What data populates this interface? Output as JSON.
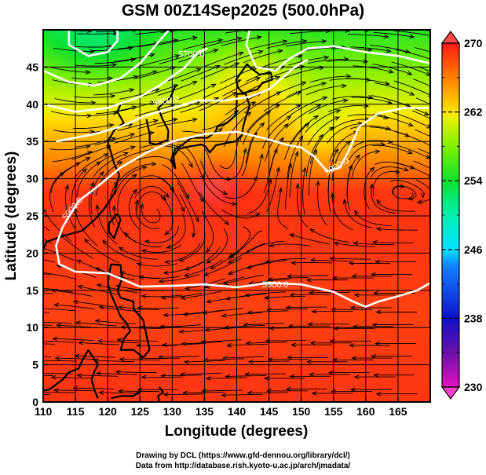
{
  "title": "GSM 00Z14Sep2025 (500.0hPa)",
  "credits": {
    "line1": "Drawing by DCL (https://www.gfd-dennou.org/library/dcl/)",
    "line2": "Data from http://database.rish.kyoto-u.ac.jp/arch/jmadata/"
  },
  "chart_data": {
    "type": "heatmap",
    "title": "GSM 00Z14Sep2025 (500.0hPa)",
    "xlabel": "Longitude (degrees)",
    "ylabel": "Latitude  (degrees)",
    "xlim": [
      110,
      170
    ],
    "ylim": [
      0,
      50
    ],
    "x_ticks": [
      "110",
      "115",
      "120",
      "125",
      "130",
      "135",
      "140",
      "145",
      "150",
      "155",
      "160",
      "165"
    ],
    "y_ticks": [
      "0",
      "5",
      "10",
      "15",
      "20",
      "25",
      "30",
      "35",
      "40",
      "45"
    ],
    "grid": true,
    "field": "temperature (K), shaded",
    "overlays": [
      "geopotential height contours (m)",
      "wind streamlines",
      "coastlines"
    ],
    "colorbar": {
      "ticks": [
        "270",
        "262",
        "254",
        "246",
        "238",
        "230"
      ],
      "range": [
        230,
        270
      ],
      "placement": "right",
      "extend": "both"
    },
    "contours": [
      {
        "label": "5700.0",
        "value": 5700
      },
      {
        "label": "5800.0",
        "value": 5800
      },
      {
        "label": "5900.0",
        "value": 5900
      }
    ],
    "contour_labels_shown": [
      "5700.0",
      "5800.0",
      "5900.0",
      "5900.0",
      "5900.0"
    ],
    "features": {
      "cyclone_center_lon": 137.5,
      "cyclone_center_lat": 31,
      "warmest_region_k": 269,
      "coldest_region_k": 252
    }
  }
}
